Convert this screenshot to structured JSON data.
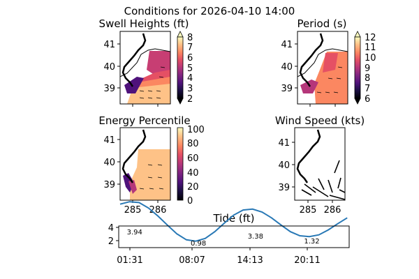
{
  "title": "Conditions for 2026-04-10 14:00",
  "colors": {
    "tide_line": "#2878b5",
    "land": "#ffffff",
    "coast": "#000000"
  },
  "chart_data": [
    {
      "type": "heatmap",
      "title": "Swell Heights (ft)",
      "yticks": [
        "41",
        "40",
        "39"
      ],
      "xticks": [],
      "colorbar": {
        "ticks": [
          "8",
          "7",
          "6",
          "5",
          "4",
          "3",
          "2"
        ],
        "range": [
          2,
          8
        ],
        "extend": "both",
        "colormap": "magma"
      }
    },
    {
      "type": "heatmap",
      "title": "Period (s)",
      "yticks": [
        "41",
        "40",
        "39"
      ],
      "xticks": [],
      "colorbar": {
        "ticks": [
          "12",
          "11",
          "10",
          "9",
          "8",
          "7",
          "6"
        ],
        "range": [
          6,
          12
        ],
        "extend": "both",
        "colormap": "magma"
      }
    },
    {
      "type": "heatmap",
      "title": "Energy Percentile",
      "yticks": [
        "41",
        "40",
        "39"
      ],
      "xticks": [
        "285",
        "286"
      ],
      "colorbar": {
        "ticks": [
          "100",
          "80",
          "60",
          "40",
          "20",
          "0"
        ],
        "range": [
          0,
          100
        ],
        "extend": "neither",
        "colormap": "magma"
      }
    },
    {
      "type": "scatter",
      "title": "Wind Speed (kts)",
      "yticks": [
        "41",
        "40",
        "39"
      ],
      "xticks": [
        "285",
        "286"
      ]
    },
    {
      "type": "line",
      "title": "Tide (ft)",
      "xticks": [
        "01:31",
        "08:07",
        "14:13",
        "20:11"
      ],
      "yticks": [
        "4",
        "2"
      ],
      "ylim": [
        1,
        4
      ],
      "hours": [
        0.0,
        1.0,
        2.0,
        3.0,
        4.0,
        5.0,
        6.0,
        7.0,
        8.0,
        9.0,
        10.0,
        11.0,
        12.0,
        13.0,
        14.0,
        15.0,
        16.0,
        17.0,
        18.0,
        19.0,
        20.0,
        21.0,
        22.0,
        23.0,
        24.0
      ],
      "values": [
        3.74,
        3.92,
        3.86,
        3.45,
        2.85,
        2.17,
        1.52,
        1.08,
        0.98,
        1.18,
        1.68,
        2.32,
        2.92,
        3.3,
        3.37,
        3.15,
        2.72,
        2.18,
        1.68,
        1.38,
        1.32,
        1.45,
        1.82,
        2.28,
        2.72
      ],
      "extrema": [
        {
          "label": "3.94",
          "hour": 1.52
        },
        {
          "label": "0.98",
          "hour": 8.12
        },
        {
          "label": "3.38",
          "hour": 14.22
        },
        {
          "label": "1.32",
          "hour": 20.18
        }
      ]
    }
  ]
}
